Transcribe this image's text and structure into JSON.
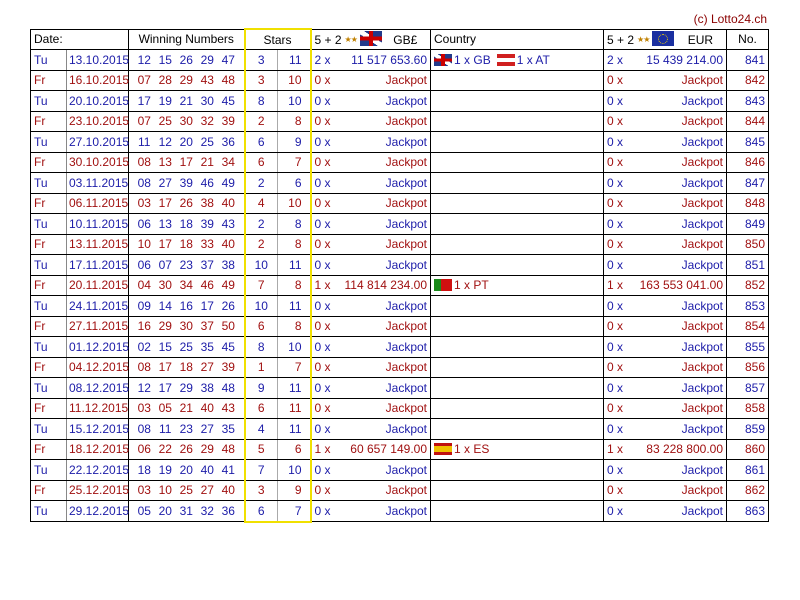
{
  "copyright": "(c) Lotto24.ch",
  "header": {
    "date": "Date:",
    "winning_numbers": "Winning Numbers",
    "stars": "Stars",
    "gbp_label": "5 + 2",
    "gbp_currency": "GB£",
    "country": "Country",
    "eur_label": "5 + 2",
    "eur_currency": "EUR",
    "no": "No."
  },
  "colors": {
    "tuesday": "#1c1ca8",
    "friday": "#a01010",
    "stars_border": "#f0e000"
  },
  "rows": [
    {
      "day": "Tu",
      "date": "13.10.2015",
      "nums": [
        "12",
        "15",
        "26",
        "29",
        "47"
      ],
      "s1": "3",
      "s2": "11",
      "gbp_count": "2 x",
      "gbp_prize": "11 517 653.60",
      "countries": [
        {
          "flag": "gb",
          "text": "1 x GB"
        },
        {
          "flag": "at",
          "text": "1 x AT"
        }
      ],
      "eur_count": "2 x",
      "eur_prize": "15 439 214.00",
      "no": "841"
    },
    {
      "day": "Fr",
      "date": "16.10.2015",
      "nums": [
        "07",
        "28",
        "29",
        "43",
        "48"
      ],
      "s1": "3",
      "s2": "10",
      "gbp_count": "0 x",
      "gbp_prize": "Jackpot",
      "countries": [],
      "eur_count": "0 x",
      "eur_prize": "Jackpot",
      "no": "842"
    },
    {
      "day": "Tu",
      "date": "20.10.2015",
      "nums": [
        "17",
        "19",
        "21",
        "30",
        "45"
      ],
      "s1": "8",
      "s2": "10",
      "gbp_count": "0 x",
      "gbp_prize": "Jackpot",
      "countries": [],
      "eur_count": "0 x",
      "eur_prize": "Jackpot",
      "no": "843"
    },
    {
      "day": "Fr",
      "date": "23.10.2015",
      "nums": [
        "07",
        "25",
        "30",
        "32",
        "39"
      ],
      "s1": "2",
      "s2": "8",
      "gbp_count": "0 x",
      "gbp_prize": "Jackpot",
      "countries": [],
      "eur_count": "0 x",
      "eur_prize": "Jackpot",
      "no": "844"
    },
    {
      "day": "Tu",
      "date": "27.10.2015",
      "nums": [
        "11",
        "12",
        "20",
        "25",
        "36"
      ],
      "s1": "6",
      "s2": "9",
      "gbp_count": "0 x",
      "gbp_prize": "Jackpot",
      "countries": [],
      "eur_count": "0 x",
      "eur_prize": "Jackpot",
      "no": "845"
    },
    {
      "day": "Fr",
      "date": "30.10.2015",
      "nums": [
        "08",
        "13",
        "17",
        "21",
        "34"
      ],
      "s1": "6",
      "s2": "7",
      "gbp_count": "0 x",
      "gbp_prize": "Jackpot",
      "countries": [],
      "eur_count": "0 x",
      "eur_prize": "Jackpot",
      "no": "846"
    },
    {
      "day": "Tu",
      "date": "03.11.2015",
      "nums": [
        "08",
        "27",
        "39",
        "46",
        "49"
      ],
      "s1": "2",
      "s2": "6",
      "gbp_count": "0 x",
      "gbp_prize": "Jackpot",
      "countries": [],
      "eur_count": "0 x",
      "eur_prize": "Jackpot",
      "no": "847"
    },
    {
      "day": "Fr",
      "date": "06.11.2015",
      "nums": [
        "03",
        "17",
        "26",
        "38",
        "40"
      ],
      "s1": "4",
      "s2": "10",
      "gbp_count": "0 x",
      "gbp_prize": "Jackpot",
      "countries": [],
      "eur_count": "0 x",
      "eur_prize": "Jackpot",
      "no": "848"
    },
    {
      "day": "Tu",
      "date": "10.11.2015",
      "nums": [
        "06",
        "13",
        "18",
        "39",
        "43"
      ],
      "s1": "2",
      "s2": "8",
      "gbp_count": "0 x",
      "gbp_prize": "Jackpot",
      "countries": [],
      "eur_count": "0 x",
      "eur_prize": "Jackpot",
      "no": "849"
    },
    {
      "day": "Fr",
      "date": "13.11.2015",
      "nums": [
        "10",
        "17",
        "18",
        "33",
        "40"
      ],
      "s1": "2",
      "s2": "8",
      "gbp_count": "0 x",
      "gbp_prize": "Jackpot",
      "countries": [],
      "eur_count": "0 x",
      "eur_prize": "Jackpot",
      "no": "850"
    },
    {
      "day": "Tu",
      "date": "17.11.2015",
      "nums": [
        "06",
        "07",
        "23",
        "37",
        "38"
      ],
      "s1": "10",
      "s2": "11",
      "gbp_count": "0 x",
      "gbp_prize": "Jackpot",
      "countries": [],
      "eur_count": "0 x",
      "eur_prize": "Jackpot",
      "no": "851"
    },
    {
      "day": "Fr",
      "date": "20.11.2015",
      "nums": [
        "04",
        "30",
        "34",
        "46",
        "49"
      ],
      "s1": "7",
      "s2": "8",
      "gbp_count": "1 x",
      "gbp_prize": "114 814 234.00",
      "countries": [
        {
          "flag": "pt",
          "text": "1 x PT"
        }
      ],
      "eur_count": "1 x",
      "eur_prize": "163 553 041.00",
      "no": "852"
    },
    {
      "day": "Tu",
      "date": "24.11.2015",
      "nums": [
        "09",
        "14",
        "16",
        "17",
        "26"
      ],
      "s1": "10",
      "s2": "11",
      "gbp_count": "0 x",
      "gbp_prize": "Jackpot",
      "countries": [],
      "eur_count": "0 x",
      "eur_prize": "Jackpot",
      "no": "853"
    },
    {
      "day": "Fr",
      "date": "27.11.2015",
      "nums": [
        "16",
        "29",
        "30",
        "37",
        "50"
      ],
      "s1": "6",
      "s2": "8",
      "gbp_count": "0 x",
      "gbp_prize": "Jackpot",
      "countries": [],
      "eur_count": "0 x",
      "eur_prize": "Jackpot",
      "no": "854"
    },
    {
      "day": "Tu",
      "date": "01.12.2015",
      "nums": [
        "02",
        "15",
        "25",
        "35",
        "45"
      ],
      "s1": "8",
      "s2": "10",
      "gbp_count": "0 x",
      "gbp_prize": "Jackpot",
      "countries": [],
      "eur_count": "0 x",
      "eur_prize": "Jackpot",
      "no": "855"
    },
    {
      "day": "Fr",
      "date": "04.12.2015",
      "nums": [
        "08",
        "17",
        "18",
        "27",
        "39"
      ],
      "s1": "1",
      "s2": "7",
      "gbp_count": "0 x",
      "gbp_prize": "Jackpot",
      "countries": [],
      "eur_count": "0 x",
      "eur_prize": "Jackpot",
      "no": "856"
    },
    {
      "day": "Tu",
      "date": "08.12.2015",
      "nums": [
        "12",
        "17",
        "29",
        "38",
        "48"
      ],
      "s1": "9",
      "s2": "11",
      "gbp_count": "0 x",
      "gbp_prize": "Jackpot",
      "countries": [],
      "eur_count": "0 x",
      "eur_prize": "Jackpot",
      "no": "857"
    },
    {
      "day": "Fr",
      "date": "11.12.2015",
      "nums": [
        "03",
        "05",
        "21",
        "40",
        "43"
      ],
      "s1": "6",
      "s2": "11",
      "gbp_count": "0 x",
      "gbp_prize": "Jackpot",
      "countries": [],
      "eur_count": "0 x",
      "eur_prize": "Jackpot",
      "no": "858"
    },
    {
      "day": "Tu",
      "date": "15.12.2015",
      "nums": [
        "08",
        "11",
        "23",
        "27",
        "35"
      ],
      "s1": "4",
      "s2": "11",
      "gbp_count": "0 x",
      "gbp_prize": "Jackpot",
      "countries": [],
      "eur_count": "0 x",
      "eur_prize": "Jackpot",
      "no": "859"
    },
    {
      "day": "Fr",
      "date": "18.12.2015",
      "nums": [
        "06",
        "22",
        "26",
        "29",
        "48"
      ],
      "s1": "5",
      "s2": "6",
      "gbp_count": "1 x",
      "gbp_prize": "60 657 149.00",
      "countries": [
        {
          "flag": "es",
          "text": "1 x ES"
        }
      ],
      "eur_count": "1 x",
      "eur_prize": "83 228 800.00",
      "no": "860"
    },
    {
      "day": "Tu",
      "date": "22.12.2015",
      "nums": [
        "18",
        "19",
        "20",
        "40",
        "41"
      ],
      "s1": "7",
      "s2": "10",
      "gbp_count": "0 x",
      "gbp_prize": "Jackpot",
      "countries": [],
      "eur_count": "0 x",
      "eur_prize": "Jackpot",
      "no": "861"
    },
    {
      "day": "Fr",
      "date": "25.12.2015",
      "nums": [
        "03",
        "10",
        "25",
        "27",
        "40"
      ],
      "s1": "3",
      "s2": "9",
      "gbp_count": "0 x",
      "gbp_prize": "Jackpot",
      "countries": [],
      "eur_count": "0 x",
      "eur_prize": "Jackpot",
      "no": "862"
    },
    {
      "day": "Tu",
      "date": "29.12.2015",
      "nums": [
        "05",
        "20",
        "31",
        "32",
        "36"
      ],
      "s1": "6",
      "s2": "7",
      "gbp_count": "0 x",
      "gbp_prize": "Jackpot",
      "countries": [],
      "eur_count": "0 x",
      "eur_prize": "Jackpot",
      "no": "863"
    }
  ]
}
